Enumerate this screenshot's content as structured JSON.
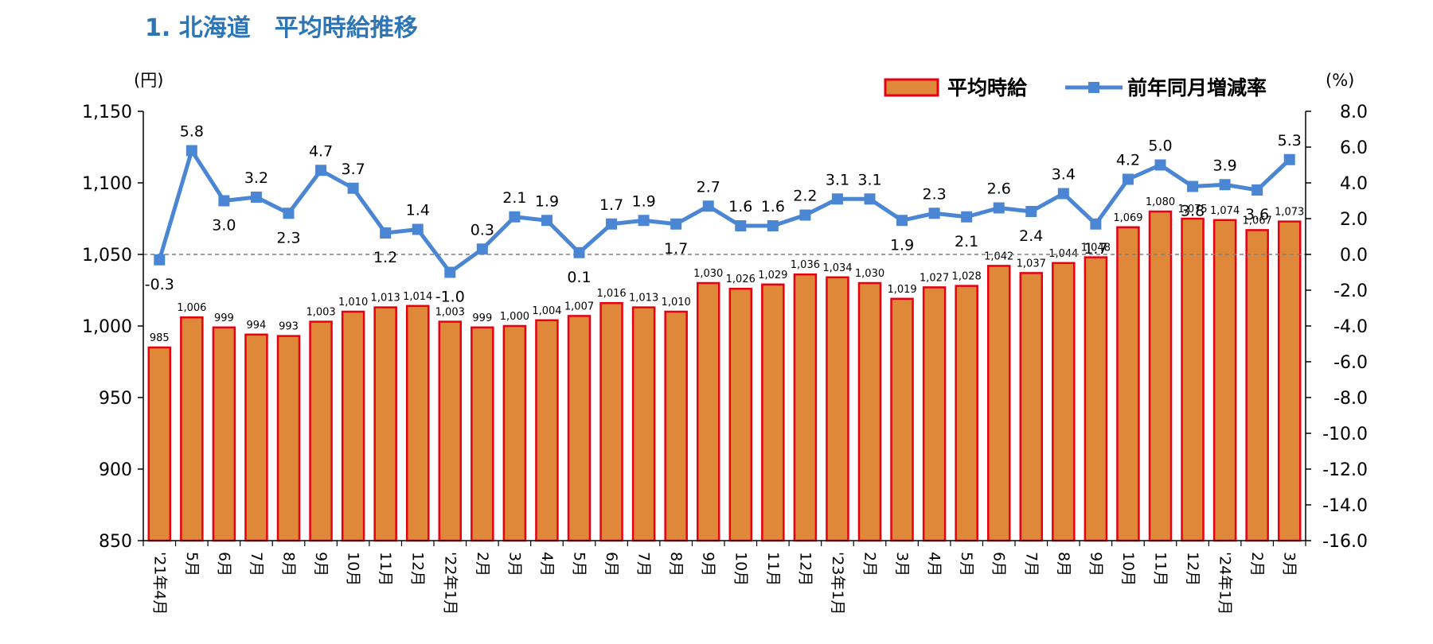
{
  "page": {
    "title": "1. 北海道　平均時給推移"
  },
  "chart_data": {
    "type": "bar+line",
    "title": "",
    "categories": [
      "'21年4月",
      "5月",
      "6月",
      "7月",
      "8月",
      "9月",
      "10月",
      "11月",
      "12月",
      "'22年1月",
      "2月",
      "3月",
      "4月",
      "5月",
      "6月",
      "7月",
      "8月",
      "9月",
      "10月",
      "11月",
      "12月",
      "'23年1月",
      "2月",
      "3月",
      "4月",
      "5月",
      "6月",
      "7月",
      "8月",
      "9月",
      "10月",
      "11月",
      "12月",
      "'24年1月",
      "2月",
      "3月"
    ],
    "series": [
      {
        "name": "平均時給",
        "type": "bar",
        "axis": "left",
        "color": "#E0883A",
        "border_color": "#E60012",
        "values": [
          985,
          1006,
          999,
          994,
          993,
          1003,
          1010,
          1013,
          1014,
          1003,
          999,
          1000,
          1004,
          1007,
          1016,
          1013,
          1010,
          1030,
          1026,
          1029,
          1036,
          1034,
          1030,
          1019,
          1027,
          1028,
          1042,
          1037,
          1044,
          1048,
          1069,
          1080,
          1075,
          1074,
          1067,
          1073
        ],
        "labels": [
          "985",
          "1,006",
          "999",
          "994",
          "993",
          "1,003",
          "1,010",
          "1,013",
          "1,014",
          "1,003",
          "999",
          "1,000",
          "1,004",
          "1,007",
          "1,016",
          "1,013",
          "1,010",
          "1,030",
          "1,026",
          "1,029",
          "1,036",
          "1,034",
          "1,030",
          "1,019",
          "1,027",
          "1,028",
          "1,042",
          "1,037",
          "1,044",
          "1,048",
          "1,069",
          "1,080",
          "1,075",
          "1,074",
          "1,067",
          "1,073"
        ]
      },
      {
        "name": "前年同月増減率",
        "type": "line",
        "axis": "right",
        "color": "#4A86D4",
        "values": [
          -0.3,
          5.8,
          3.0,
          3.2,
          2.3,
          4.7,
          3.7,
          1.2,
          1.4,
          -1.0,
          0.3,
          2.1,
          1.9,
          0.1,
          1.7,
          1.9,
          1.7,
          2.7,
          1.6,
          1.6,
          2.2,
          3.1,
          3.1,
          1.9,
          2.3,
          2.1,
          2.6,
          2.4,
          3.4,
          1.7,
          4.2,
          5.0,
          3.8,
          3.9,
          3.6,
          5.3
        ]
      }
    ],
    "y_left": {
      "unit_label": "(円)",
      "min": 850,
      "max": 1150,
      "ticks": [
        850,
        900,
        950,
        1000,
        1050,
        1100,
        1150
      ],
      "tick_labels": [
        "850",
        "900",
        "950",
        "1,000",
        "1,050",
        "1,100",
        "1,150"
      ]
    },
    "y_right": {
      "unit_label": "(%)",
      "min": -16.0,
      "max": 8.0,
      "ticks": [
        -16,
        -14,
        -12,
        -10,
        -8,
        -6,
        -4,
        -2,
        0,
        2,
        4,
        6,
        8
      ],
      "tick_labels": [
        "-16.0",
        "-14.0",
        "-12.0",
        "-10.0",
        "-8.0",
        "-6.0",
        "-4.0",
        "-2.0",
        "0.0",
        "2.0",
        "4.0",
        "6.0",
        "8.0"
      ]
    },
    "zero_line": "dashed",
    "grid": false,
    "legend": {
      "position": "top-right",
      "entries": [
        "平均時給",
        "前年同月増減率"
      ]
    }
  }
}
